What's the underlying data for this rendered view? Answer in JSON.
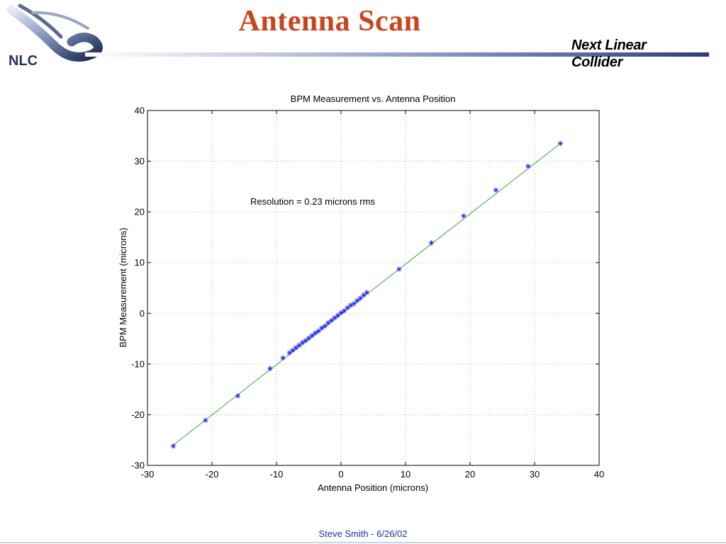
{
  "slide": {
    "title": "Antenna Scan",
    "brand_line1": "Next Linear",
    "brand_line2": "Collider",
    "logo_text": "NLC",
    "footer": "Steve Smith  -  6/26/02"
  },
  "colors": {
    "title": "#c8451d",
    "markers": "#1a1aff",
    "fit_line": "#2eaa2e",
    "footer_text": "#1a33a8"
  },
  "chart_data": {
    "type": "scatter",
    "title": "BPM Measurement vs. Antenna Position",
    "xlabel": "Antenna Position (microns)",
    "ylabel": "BPM Measurement (microns)",
    "xlim": [
      -30,
      40
    ],
    "ylim": [
      -30,
      40
    ],
    "xticks": [
      -30,
      -20,
      -10,
      0,
      10,
      20,
      30,
      40
    ],
    "yticks": [
      -30,
      -20,
      -10,
      0,
      10,
      20,
      30,
      40
    ],
    "grid": true,
    "annotation": "Resolution = 0.23 microns rms",
    "series": [
      {
        "marker": "asterisk",
        "x": [
          -26,
          -21,
          -16,
          -11,
          -9,
          -8,
          -7.5,
          -7,
          -6.5,
          -6,
          -5.5,
          -5,
          -4.5,
          -4,
          -3.5,
          -3,
          -2.5,
          -2,
          -1.5,
          -1,
          -0.5,
          0,
          0.5,
          1,
          1.5,
          2,
          2.5,
          3,
          3.5,
          4,
          9,
          14,
          19,
          24,
          29,
          34
        ],
        "y": [
          -26.2,
          -21.1,
          -16.3,
          -10.9,
          -8.8,
          -7.8,
          -7.3,
          -6.8,
          -6.3,
          -5.8,
          -5.4,
          -4.9,
          -4.4,
          -3.9,
          -3.5,
          -2.9,
          -2.5,
          -1.9,
          -1.4,
          -0.9,
          -0.4,
          0.1,
          0.5,
          1.1,
          1.6,
          1.9,
          2.5,
          3.0,
          3.6,
          4.1,
          8.7,
          13.9,
          19.2,
          24.3,
          29.0,
          33.5
        ]
      }
    ],
    "fit_line": {
      "x": [
        -26,
        34
      ],
      "y": [
        -26.0,
        33.5
      ]
    }
  }
}
